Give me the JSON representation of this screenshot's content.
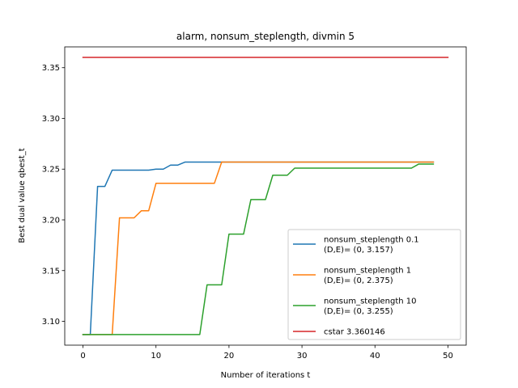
{
  "chart_data": {
    "type": "line",
    "title": "alarm, nonsum_steplength, divmin 5",
    "xlabel": "Number of iterations t",
    "ylabel": "Best dual value qbest_t",
    "xlim": [
      -2.5,
      52.5
    ],
    "ylim": [
      3.0765,
      3.3705
    ],
    "xticks": [
      0,
      10,
      20,
      30,
      40,
      50
    ],
    "xtick_labels": [
      "0",
      "10",
      "20",
      "30",
      "40",
      "50"
    ],
    "yticks": [
      3.1,
      3.15,
      3.2,
      3.25,
      3.3,
      3.35
    ],
    "ytick_labels": [
      "3.10",
      "3.15",
      "3.20",
      "3.25",
      "3.30",
      "3.35"
    ],
    "grid": false,
    "legend_position": "lower-right",
    "series": [
      {
        "name": "nonsum_steplength 0.1",
        "name_line2": "(D,E)= (0, 3.157)",
        "color": "#1f77b4",
        "x": [
          0,
          1,
          2,
          3,
          4,
          5,
          6,
          7,
          8,
          9,
          10,
          11,
          12,
          13,
          14,
          15,
          16,
          17,
          18,
          19,
          20,
          48
        ],
        "y": [
          3.087,
          3.087,
          3.233,
          3.233,
          3.249,
          3.249,
          3.249,
          3.249,
          3.249,
          3.249,
          3.25,
          3.25,
          3.254,
          3.254,
          3.257,
          3.257,
          3.257,
          3.257,
          3.257,
          3.257,
          3.257,
          3.257
        ]
      },
      {
        "name": "nonsum_steplength 1",
        "name_line2": "(D,E)= (0, 2.375)",
        "color": "#ff7f0e",
        "x": [
          0,
          1,
          2,
          3,
          4,
          5,
          6,
          7,
          8,
          9,
          10,
          11,
          12,
          13,
          14,
          15,
          16,
          17,
          18,
          19,
          20,
          48
        ],
        "y": [
          3.087,
          3.087,
          3.087,
          3.087,
          3.087,
          3.202,
          3.202,
          3.202,
          3.209,
          3.209,
          3.236,
          3.236,
          3.236,
          3.236,
          3.236,
          3.236,
          3.236,
          3.236,
          3.236,
          3.257,
          3.257,
          3.257
        ]
      },
      {
        "name": "nonsum_steplength 10",
        "name_line2": "(D,E)= (0, 3.255)",
        "color": "#2ca02c",
        "x": [
          0,
          16,
          17,
          18,
          19,
          20,
          21,
          22,
          23,
          24,
          25,
          26,
          27,
          28,
          29,
          30,
          45,
          46,
          47,
          48
        ],
        "y": [
          3.087,
          3.087,
          3.136,
          3.136,
          3.136,
          3.186,
          3.186,
          3.186,
          3.22,
          3.22,
          3.22,
          3.244,
          3.244,
          3.244,
          3.251,
          3.251,
          3.251,
          3.255,
          3.255,
          3.255
        ]
      },
      {
        "name": "cstar 3.360146",
        "name_line2": "",
        "color": "#d62728",
        "x": [
          0,
          50
        ],
        "y": [
          3.360146,
          3.360146
        ]
      }
    ]
  }
}
